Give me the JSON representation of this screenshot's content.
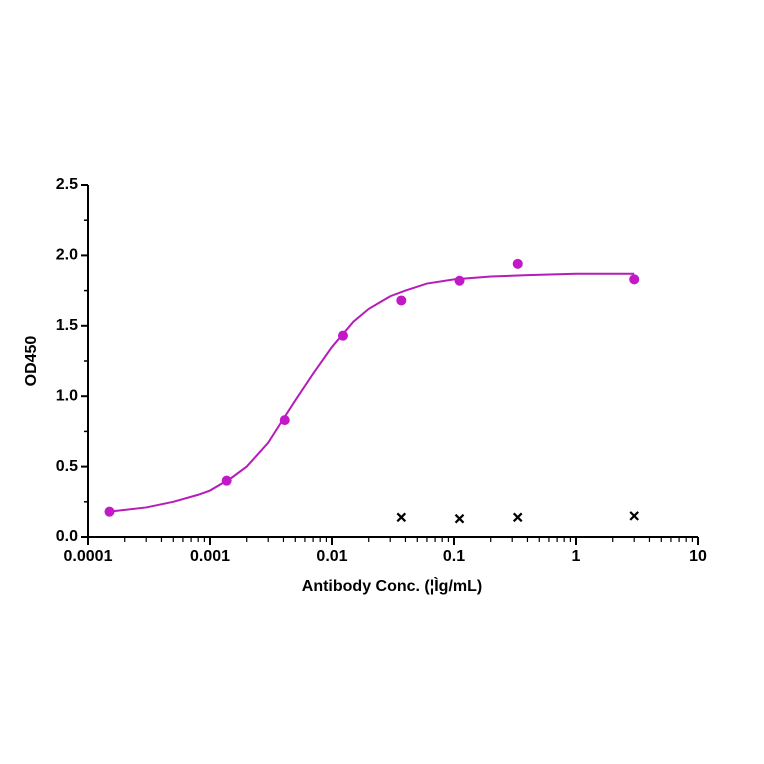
{
  "chart_data": {
    "type": "scatter",
    "x_label": "Antibody Conc. (¦Ìg/mL)",
    "y_label": "OD450",
    "x_log": true,
    "xlim": [
      0.0001,
      10
    ],
    "xticks": [
      0.0001,
      0.001,
      0.01,
      0.1,
      1,
      10
    ],
    "xminorticks": [
      0.0002,
      0.0003,
      0.0004,
      0.0005,
      0.0006,
      0.0007,
      0.0008,
      0.0009,
      0.002,
      0.003,
      0.004,
      0.005,
      0.006,
      0.007,
      0.008,
      0.009,
      0.02,
      0.03,
      0.04,
      0.05,
      0.06,
      0.07,
      0.08,
      0.09,
      0.2,
      0.3,
      0.4,
      0.5,
      0.6,
      0.7,
      0.8,
      0.9,
      2,
      3,
      4,
      5,
      6,
      7,
      8,
      9
    ],
    "ylim": [
      0,
      2.5
    ],
    "yticks": [
      {
        "value": 0,
        "label": "0.0"
      },
      0.5,
      {
        "value": 1,
        "label": "1.0"
      },
      1.5,
      {
        "value": 2,
        "label": "2.0"
      },
      2.5
    ],
    "yminorticks": [
      0.25,
      0.75,
      1.25,
      1.75,
      2.25
    ],
    "series": [
      {
        "color": "#c218c8",
        "marker": "circle",
        "x": [
          0.00015,
          0.00137,
          0.0041,
          0.0123,
          0.037,
          0.111,
          0.333,
          3
        ],
        "values": [
          0.18,
          0.4,
          0.83,
          1.43,
          1.68,
          1.82,
          1.94,
          1.83
        ]
      },
      {
        "color": "#000000",
        "marker": "cross",
        "x": [
          0.037,
          0.111,
          0.333,
          3
        ],
        "values": [
          0.14,
          0.13,
          0.14,
          0.15
        ]
      }
    ],
    "fit": {
      "color": "#b51cb8",
      "x": [
        0.00015,
        0.0003,
        0.0005,
        0.0008,
        0.001,
        0.0015,
        0.002,
        0.003,
        0.004,
        0.005,
        0.007,
        0.01,
        0.015,
        0.02,
        0.03,
        0.04,
        0.06,
        0.1,
        0.2,
        0.4,
        1,
        3
      ],
      "values": [
        0.18,
        0.21,
        0.25,
        0.3,
        0.33,
        0.42,
        0.5,
        0.67,
        0.84,
        0.97,
        1.16,
        1.35,
        1.53,
        1.62,
        1.71,
        1.75,
        1.8,
        1.83,
        1.85,
        1.86,
        1.87,
        1.87
      ]
    }
  }
}
